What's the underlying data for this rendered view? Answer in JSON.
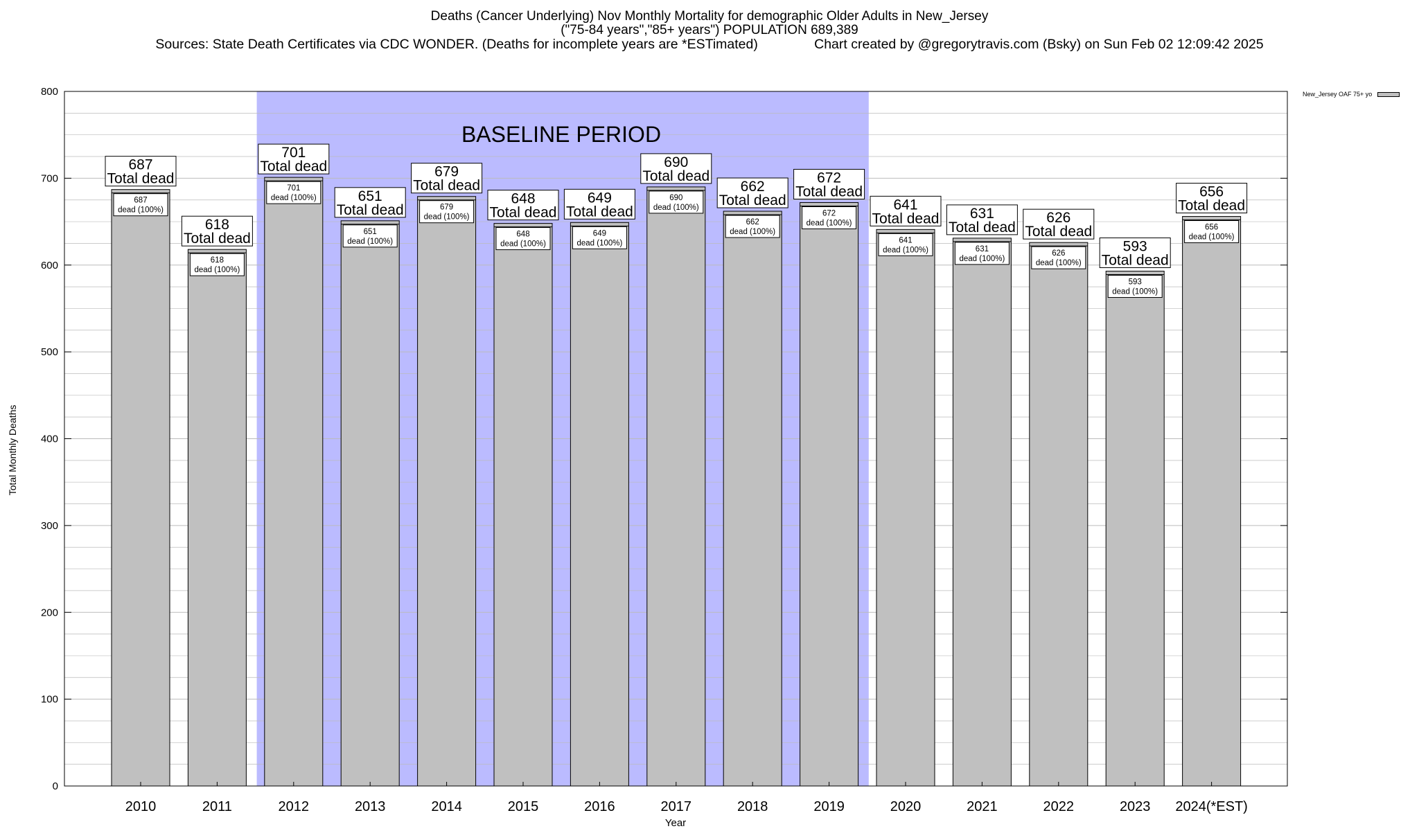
{
  "title_lines": [
    "Deaths (Cancer Underlying) Nov Monthly Mortality for demographic Older Adults in New_Jersey",
    "(\"75-84 years\",\"85+ years\") POPULATION 689,389",
    "Sources: State Death Certificates via CDC WONDER. (Deaths for incomplete years are *ESTimated)               Chart created by @gregorytravis.com (Bsky) on Sun Feb 02 12:09:42 2025"
  ],
  "colors": {
    "bar": "#c0c0c0",
    "baseline": "#bbbbff",
    "grid": "#bbbbbb"
  },
  "chart_data": {
    "type": "bar",
    "categories": [
      "2010",
      "2011",
      "2012",
      "2013",
      "2014",
      "2015",
      "2016",
      "2017",
      "2018",
      "2019",
      "2020",
      "2021",
      "2022",
      "2023",
      "2024(*EST)"
    ],
    "series": [
      {
        "name": "New_Jersey OAF 75+ yo",
        "values": [
          687,
          618,
          701,
          651,
          679,
          648,
          649,
          690,
          662,
          672,
          641,
          631,
          626,
          593,
          656
        ]
      }
    ],
    "total_label": "Total dead",
    "inner_label": "dead (100%)",
    "baseline": {
      "label": "BASELINE PERIOD",
      "from": "2012",
      "to": "2019"
    },
    "xlabel": "Year",
    "ylabel": "Total Monthly Deaths",
    "ylim": [
      0,
      800
    ],
    "yticks": [
      0,
      100,
      200,
      300,
      400,
      500,
      600,
      700,
      800
    ],
    "grid": true,
    "legend_position": "top-right"
  }
}
